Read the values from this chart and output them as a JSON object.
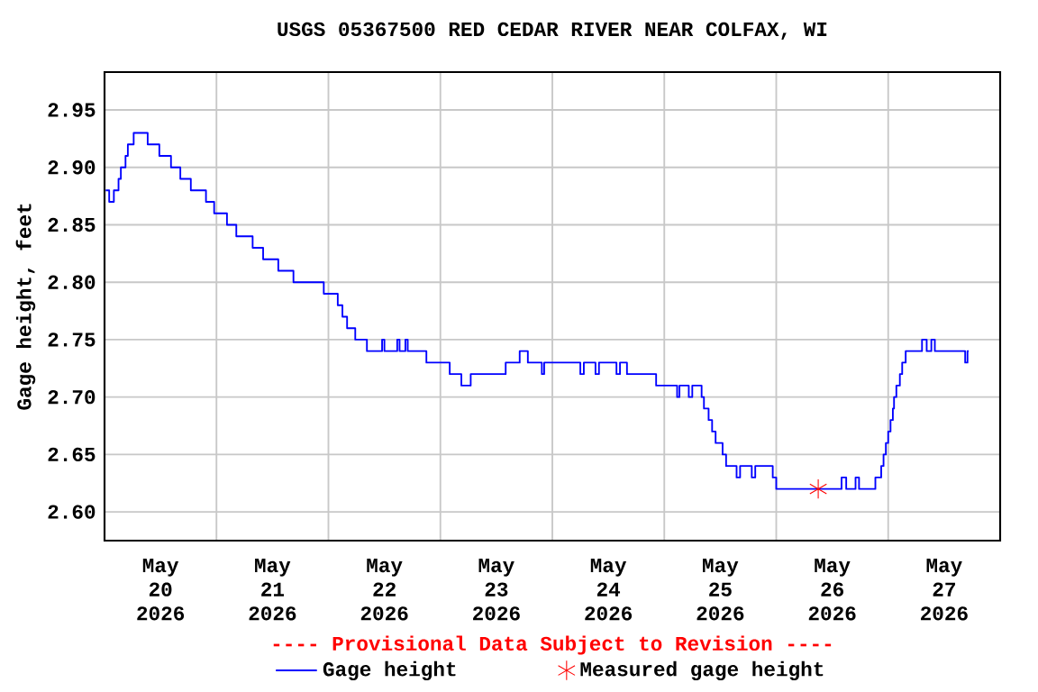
{
  "chart_data": {
    "type": "step",
    "title": "USGS 05367500 RED CEDAR RIVER NEAR COLFAX, WI",
    "ylabel": "Gage height, feet",
    "xlim": [
      "2026-05-20T00:00",
      "2026-05-28T00:00"
    ],
    "xticks": [
      {
        "value": "2026-05-20T00:00",
        "label": null
      },
      {
        "value": "2026-05-21T00:00",
        "label": null
      },
      {
        "value": "2026-05-22T00:00",
        "label": null
      },
      {
        "value": "2026-05-23T00:00",
        "label": null
      },
      {
        "value": "2026-05-24T00:00",
        "label": null
      },
      {
        "value": "2026-05-25T00:00",
        "label": null
      },
      {
        "value": "2026-05-26T00:00",
        "label": null
      },
      {
        "value": "2026-05-27T00:00",
        "label": null
      },
      {
        "value": "2026-05-28T00:00",
        "label": null
      },
      {
        "value": "2026-05-20T12:00",
        "label": "May 20 2026"
      },
      {
        "value": "2026-05-21T12:00",
        "label": "May 21 2026"
      },
      {
        "value": "2026-05-22T12:00",
        "label": "May 22 2026"
      },
      {
        "value": "2026-05-23T12:00",
        "label": "May 23 2026"
      },
      {
        "value": "2026-05-24T12:00",
        "label": "May 24 2026"
      },
      {
        "value": "2026-05-25T12:00",
        "label": "May 25 2026"
      },
      {
        "value": "2026-05-26T12:00",
        "label": "May 26 2026"
      },
      {
        "value": "2026-05-27T12:00",
        "label": "May 27 2026"
      }
    ],
    "ylim": [
      2.575,
      2.983
    ],
    "yticks": [
      {
        "value": 2.6,
        "label": "2.60"
      },
      {
        "value": 2.65,
        "label": "2.65"
      },
      {
        "value": 2.7,
        "label": "2.70"
      },
      {
        "value": 2.75,
        "label": "2.75"
      },
      {
        "value": 2.8,
        "label": "2.80"
      },
      {
        "value": 2.85,
        "label": "2.85"
      },
      {
        "value": 2.9,
        "label": "2.90"
      },
      {
        "value": 2.95,
        "label": "2.95"
      }
    ],
    "grid": true,
    "legend": "bottom",
    "annotations": [
      "---- Provisional Data Subject to Revision ----"
    ],
    "series": [
      {
        "name": "Gage height",
        "color": "#0000ff",
        "marker": "none",
        "x": [
          "2026-05-20T00:15",
          "2026-05-20T01:00",
          "2026-05-20T02:00",
          "2026-05-20T03:00",
          "2026-05-20T03:30",
          "2026-05-20T04:30",
          "2026-05-20T05:00",
          "2026-05-20T06:15",
          "2026-05-20T09:15",
          "2026-05-20T11:45",
          "2026-05-20T14:15",
          "2026-05-20T16:15",
          "2026-05-20T18:30",
          "2026-05-20T21:45",
          "2026-05-20T23:30",
          "2026-05-21T02:15",
          "2026-05-21T04:15",
          "2026-05-21T07:45",
          "2026-05-21T10:00",
          "2026-05-21T13:15",
          "2026-05-21T16:30",
          "2026-05-21T23:00",
          "2026-05-22T02:00",
          "2026-05-22T03:00",
          "2026-05-22T04:00",
          "2026-05-22T05:45",
          "2026-05-22T08:15",
          "2026-05-22T11:30",
          "2026-05-22T12:00",
          "2026-05-22T14:45",
          "2026-05-22T15:15",
          "2026-05-22T16:30",
          "2026-05-22T17:00",
          "2026-05-22T21:00",
          "2026-05-23T02:00",
          "2026-05-23T04:30",
          "2026-05-23T06:30",
          "2026-05-23T14:00",
          "2026-05-23T17:00",
          "2026-05-23T18:45",
          "2026-05-23T21:45",
          "2026-05-23T22:15",
          "2026-05-24T06:00",
          "2026-05-24T06:45",
          "2026-05-24T09:15",
          "2026-05-24T10:00",
          "2026-05-24T13:45",
          "2026-05-24T14:30",
          "2026-05-24T16:00",
          "2026-05-24T22:15",
          "2026-05-25T02:45",
          "2026-05-25T03:15",
          "2026-05-25T05:15",
          "2026-05-25T06:00",
          "2026-05-25T08:00",
          "2026-05-25T08:30",
          "2026-05-25T09:30",
          "2026-05-25T10:15",
          "2026-05-25T11:00",
          "2026-05-25T12:30",
          "2026-05-25T13:15",
          "2026-05-25T15:30",
          "2026-05-25T16:15",
          "2026-05-25T18:45",
          "2026-05-25T19:30",
          "2026-05-25T23:15",
          "2026-05-26T00:00",
          "2026-05-26T14:00",
          "2026-05-26T15:00",
          "2026-05-26T17:00",
          "2026-05-26T17:45",
          "2026-05-26T21:15",
          "2026-05-26T22:30",
          "2026-05-26T23:00",
          "2026-05-26T23:30",
          "2026-05-27T00:00",
          "2026-05-27T00:30",
          "2026-05-27T01:00",
          "2026-05-27T01:15",
          "2026-05-27T01:45",
          "2026-05-27T02:30",
          "2026-05-27T03:00",
          "2026-05-27T03:45",
          "2026-05-27T07:15",
          "2026-05-27T08:15",
          "2026-05-27T09:15",
          "2026-05-27T10:00",
          "2026-05-27T16:30",
          "2026-05-27T17:00",
          "2026-05-27T17:15"
        ],
        "values": [
          2.88,
          2.87,
          2.88,
          2.89,
          2.9,
          2.91,
          2.92,
          2.93,
          2.92,
          2.91,
          2.9,
          2.89,
          2.88,
          2.87,
          2.86,
          2.85,
          2.84,
          2.83,
          2.82,
          2.81,
          2.8,
          2.79,
          2.78,
          2.77,
          2.76,
          2.75,
          2.74,
          2.75,
          2.74,
          2.75,
          2.74,
          2.75,
          2.74,
          2.73,
          2.72,
          2.71,
          2.72,
          2.73,
          2.74,
          2.73,
          2.72,
          2.73,
          2.72,
          2.73,
          2.72,
          2.73,
          2.72,
          2.73,
          2.72,
          2.71,
          2.7,
          2.71,
          2.7,
          2.71,
          2.7,
          2.69,
          2.68,
          2.67,
          2.66,
          2.65,
          2.64,
          2.63,
          2.64,
          2.63,
          2.64,
          2.63,
          2.62,
          2.63,
          2.62,
          2.63,
          2.62,
          2.63,
          2.64,
          2.65,
          2.66,
          2.67,
          2.68,
          2.69,
          2.7,
          2.71,
          2.72,
          2.73,
          2.74,
          2.75,
          2.74,
          2.75,
          2.74,
          2.73,
          2.74,
          2.74
        ]
      },
      {
        "name": "Measured gage height",
        "type": "scatter",
        "color": "#ff0000",
        "marker": "cross",
        "x": [
          "2026-05-26T09:00"
        ],
        "values": [
          2.62
        ]
      }
    ]
  }
}
